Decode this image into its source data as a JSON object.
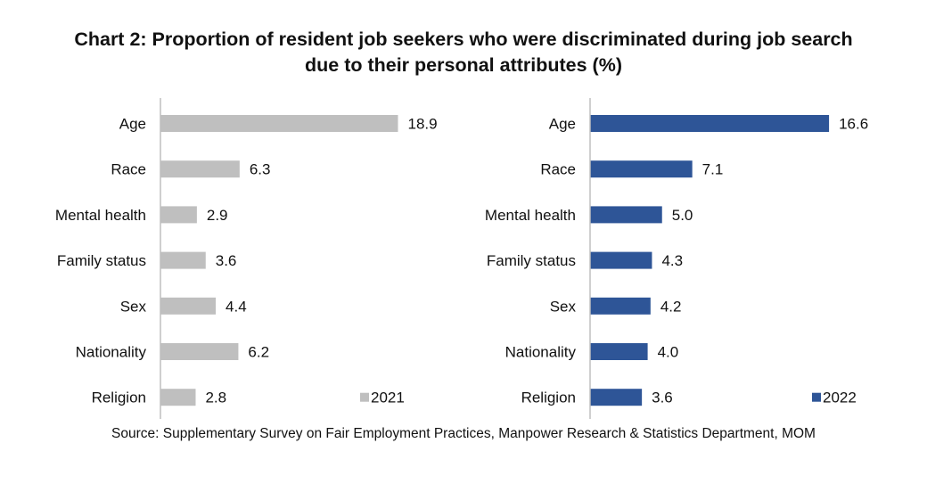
{
  "title_line1": "Chart 2: Proportion of resident job seekers who were discriminated during job search",
  "title_line2": "due to their personal attributes (%)",
  "source": "Source: Supplementary Survey on Fair Employment Practices, Manpower Research & Statistics Department, MOM",
  "chart_data": [
    {
      "type": "bar",
      "orientation": "horizontal",
      "categories": [
        "Age",
        "Race",
        "Mental health",
        "Family status",
        "Sex",
        "Nationality",
        "Religion"
      ],
      "series": [
        {
          "name": "2021",
          "values": [
            18.9,
            6.3,
            2.9,
            3.6,
            4.4,
            6.2,
            2.8
          ],
          "color": "#bfbfbf"
        }
      ],
      "value_labels": [
        "18.9",
        "6.3",
        "2.9",
        "3.6",
        "4.4",
        "6.2",
        "2.8"
      ],
      "xlim": [
        0,
        19.5
      ],
      "grid": false,
      "legend_position": "bottom-right"
    },
    {
      "type": "bar",
      "orientation": "horizontal",
      "categories": [
        "Age",
        "Race",
        "Mental health",
        "Family status",
        "Sex",
        "Nationality",
        "Religion"
      ],
      "series": [
        {
          "name": "2022",
          "values": [
            16.6,
            7.1,
            5.0,
            4.3,
            4.2,
            4.0,
            3.6
          ],
          "color": "#2e5597"
        }
      ],
      "value_labels": [
        "16.6",
        "7.1",
        "5.0",
        "4.3",
        "4.2",
        "4.0",
        "3.6"
      ],
      "xlim": [
        0,
        19.5
      ],
      "grid": false,
      "legend_position": "bottom-right"
    }
  ]
}
